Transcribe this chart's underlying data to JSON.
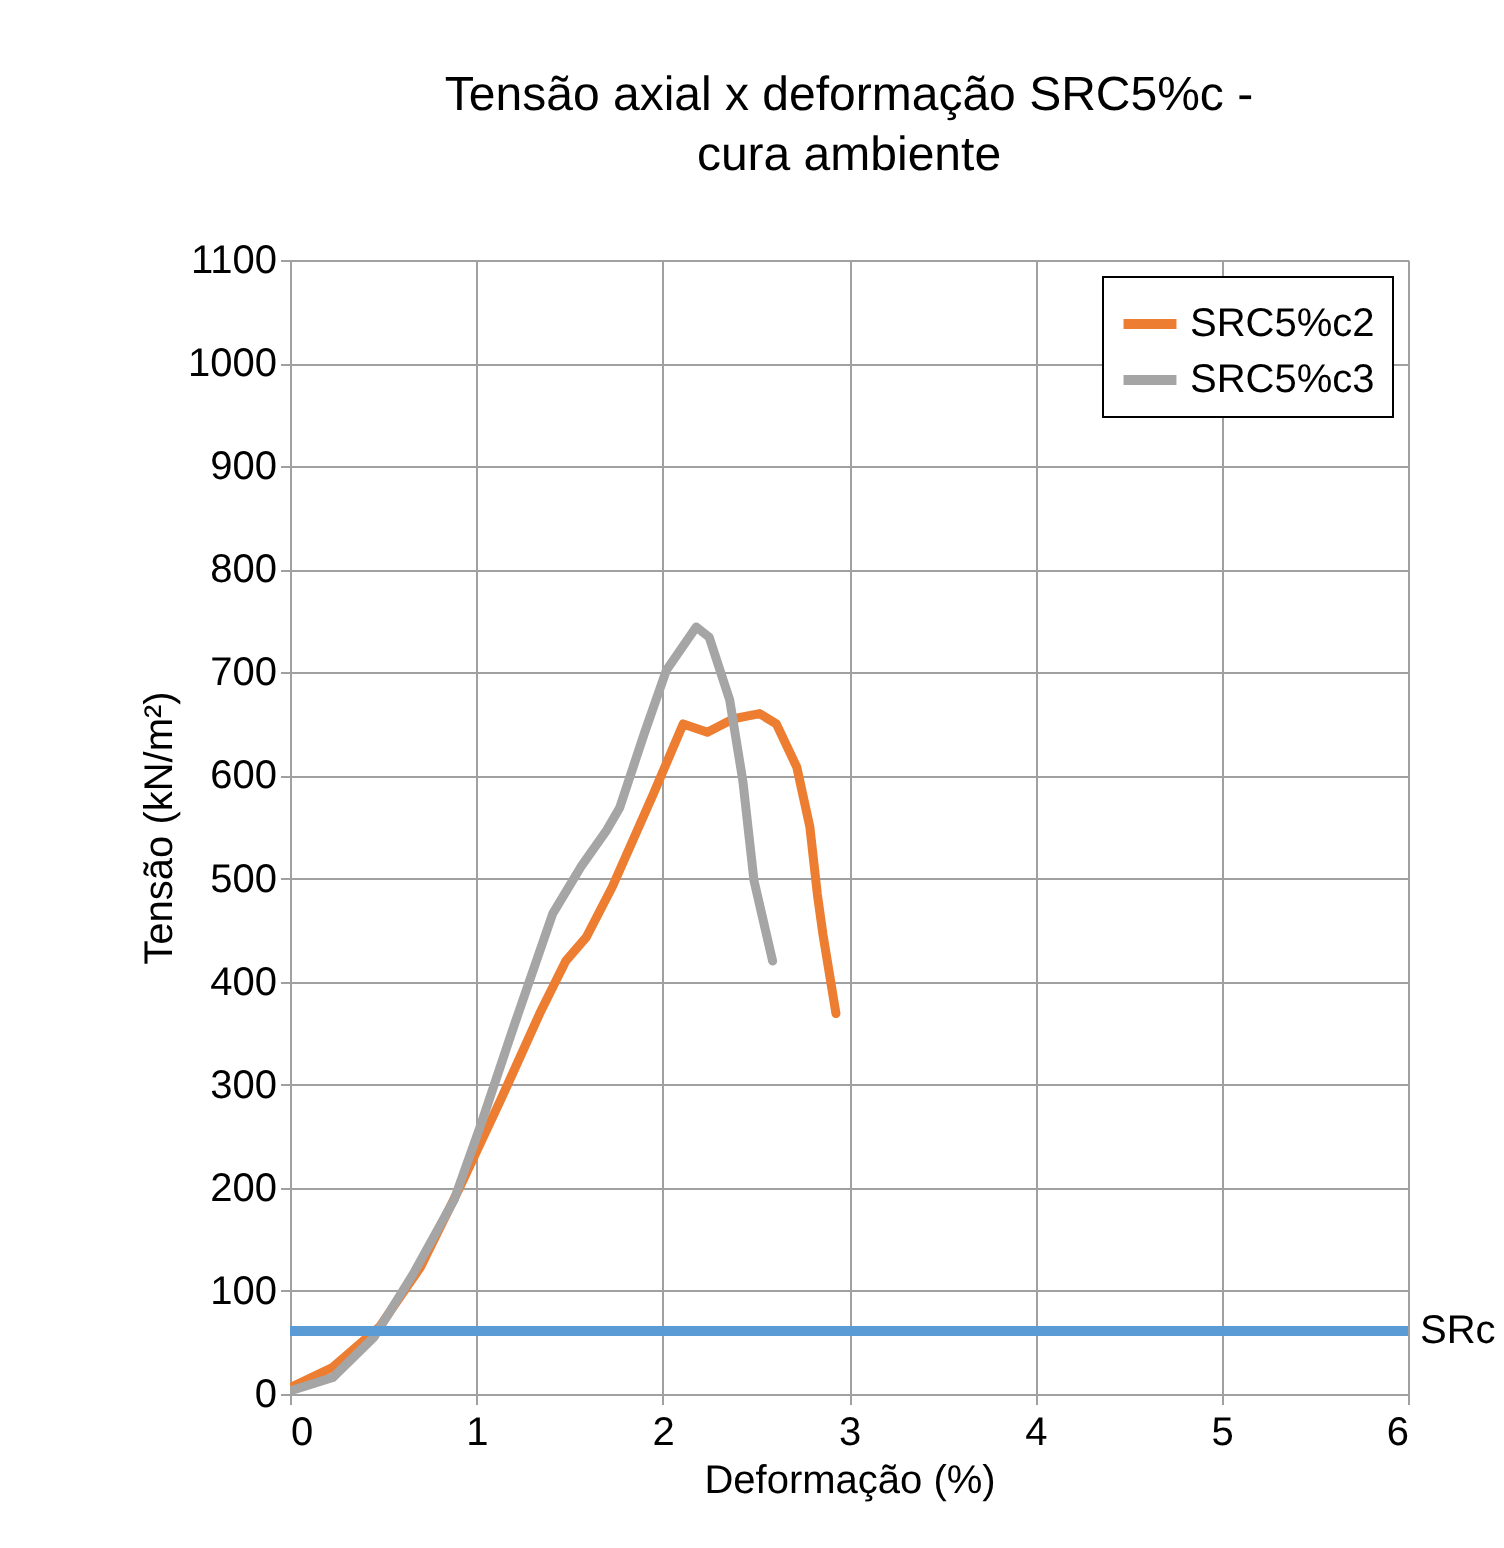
{
  "chart_data": {
    "type": "line",
    "title": "Tensão axial x deformação SRC5%c -\ncura ambiente",
    "xlabel": "Deformação (%)",
    "ylabel": "Tensão (kN/m²)",
    "xlim": [
      0,
      6
    ],
    "xticks": [
      0,
      1,
      2,
      3,
      4,
      5,
      6
    ],
    "ylim": [
      0,
      1100
    ],
    "yticks": [
      0,
      100,
      200,
      300,
      400,
      500,
      600,
      700,
      800,
      900,
      1000,
      1100
    ],
    "grid": true,
    "legend": "top right",
    "marker": "none",
    "line_style": "solid",
    "series": [
      {
        "name": "SRC5%c2",
        "color": "#ed7d31",
        "x": [
          0,
          0.23,
          0.48,
          0.7,
          0.91,
          1.13,
          1.34,
          1.48,
          1.59,
          1.73,
          1.95,
          2.11,
          2.24,
          2.38,
          2.52,
          2.61,
          2.72,
          2.79,
          2.83,
          2.86,
          2.93
        ],
        "values": [
          6,
          26,
          65,
          123,
          200,
          285,
          369,
          420,
          443,
          492,
          582,
          650,
          642,
          655,
          660,
          650,
          608,
          550,
          485,
          446,
          369
        ]
      },
      {
        "name": "SRC5%c3",
        "color": "#a5a5a5",
        "x": [
          0,
          0.23,
          0.45,
          0.66,
          0.88,
          1.02,
          1.2,
          1.41,
          1.56,
          1.7,
          1.77,
          1.9,
          2.02,
          2.18,
          2.25,
          2.36,
          2.43,
          2.49,
          2.59
        ],
        "values": [
          3,
          16,
          55,
          116,
          188,
          259,
          356,
          466,
          511,
          547,
          569,
          640,
          702,
          744,
          734,
          673,
          595,
          498,
          420
        ]
      }
    ],
    "ref_lines": [
      {
        "axis": "y",
        "value": 61,
        "label": "SRc",
        "color": "#5b9bd5",
        "line_style": "solid"
      }
    ]
  }
}
